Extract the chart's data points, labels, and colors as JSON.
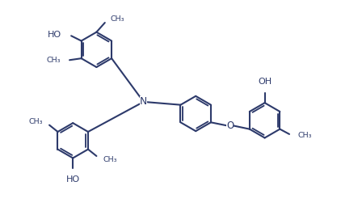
{
  "bg_color": "#ffffff",
  "line_color": "#2d3a6b",
  "line_width": 1.5,
  "font_size": 8.0,
  "fig_width": 4.22,
  "fig_height": 2.56,
  "dpi": 100,
  "xlim": [
    0,
    10
  ],
  "ylim": [
    0,
    6
  ]
}
